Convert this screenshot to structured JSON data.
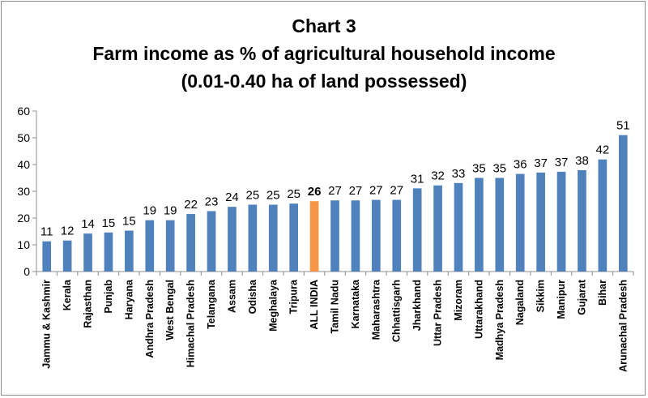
{
  "chart_data": {
    "type": "bar",
    "title_lines": [
      "Chart 3",
      "Farm income as % of agricultural household income",
      "(0.01-0.40 ha of land possessed)"
    ],
    "xlabel": "",
    "ylabel": "",
    "ylim": [
      0,
      60
    ],
    "yticks": [
      "0",
      "10",
      "20",
      "30",
      "40",
      "50",
      "60"
    ],
    "grid": false,
    "legend": false,
    "highlight_category": "ALL INDIA",
    "categories": [
      "Jammu & Kashmir",
      "Kerala",
      "Rajasthan",
      "Punjab",
      "Haryana",
      "Andhra Pradesh",
      "West Bengal",
      "Himachal Pradesh",
      "Telangana",
      "Assam",
      "Odisha",
      "Meghalaya",
      "Tripura",
      "ALL INDIA",
      "Tamil Nadu",
      "Karnataka",
      "Maharashtra",
      "Chhattisgarh",
      "Jharkhand",
      "Uttar Pradesh",
      "Mizoram",
      "Uttarakhand",
      "Madhya Pradesh",
      "Nagaland",
      "Sikkim",
      "Manipur",
      "Gujarat",
      "Bihar",
      "Arunachal Pradesh"
    ],
    "values": [
      11.3,
      11.6,
      14.2,
      14.6,
      15.3,
      19.2,
      19.2,
      21.5,
      22.6,
      24.2,
      25.0,
      25.0,
      25.4,
      26.3,
      26.6,
      26.6,
      26.8,
      26.8,
      31.1,
      32.2,
      33.1,
      35.0,
      35.0,
      36.5,
      37.0,
      37.3,
      37.9,
      41.9,
      51.0
    ],
    "data_labels": [
      "11",
      "12",
      "14",
      "15",
      "15",
      "19",
      "19",
      "22",
      "23",
      "24",
      "25",
      "25",
      "25",
      "26",
      "27",
      "27",
      "27",
      "27",
      "31",
      "32",
      "33",
      "35",
      "35",
      "36",
      "37",
      "37",
      "38",
      "42",
      "51"
    ],
    "colors": {
      "bar": "#4f81bd",
      "highlight": "#f79646",
      "axis": "#8c8c8c"
    }
  }
}
